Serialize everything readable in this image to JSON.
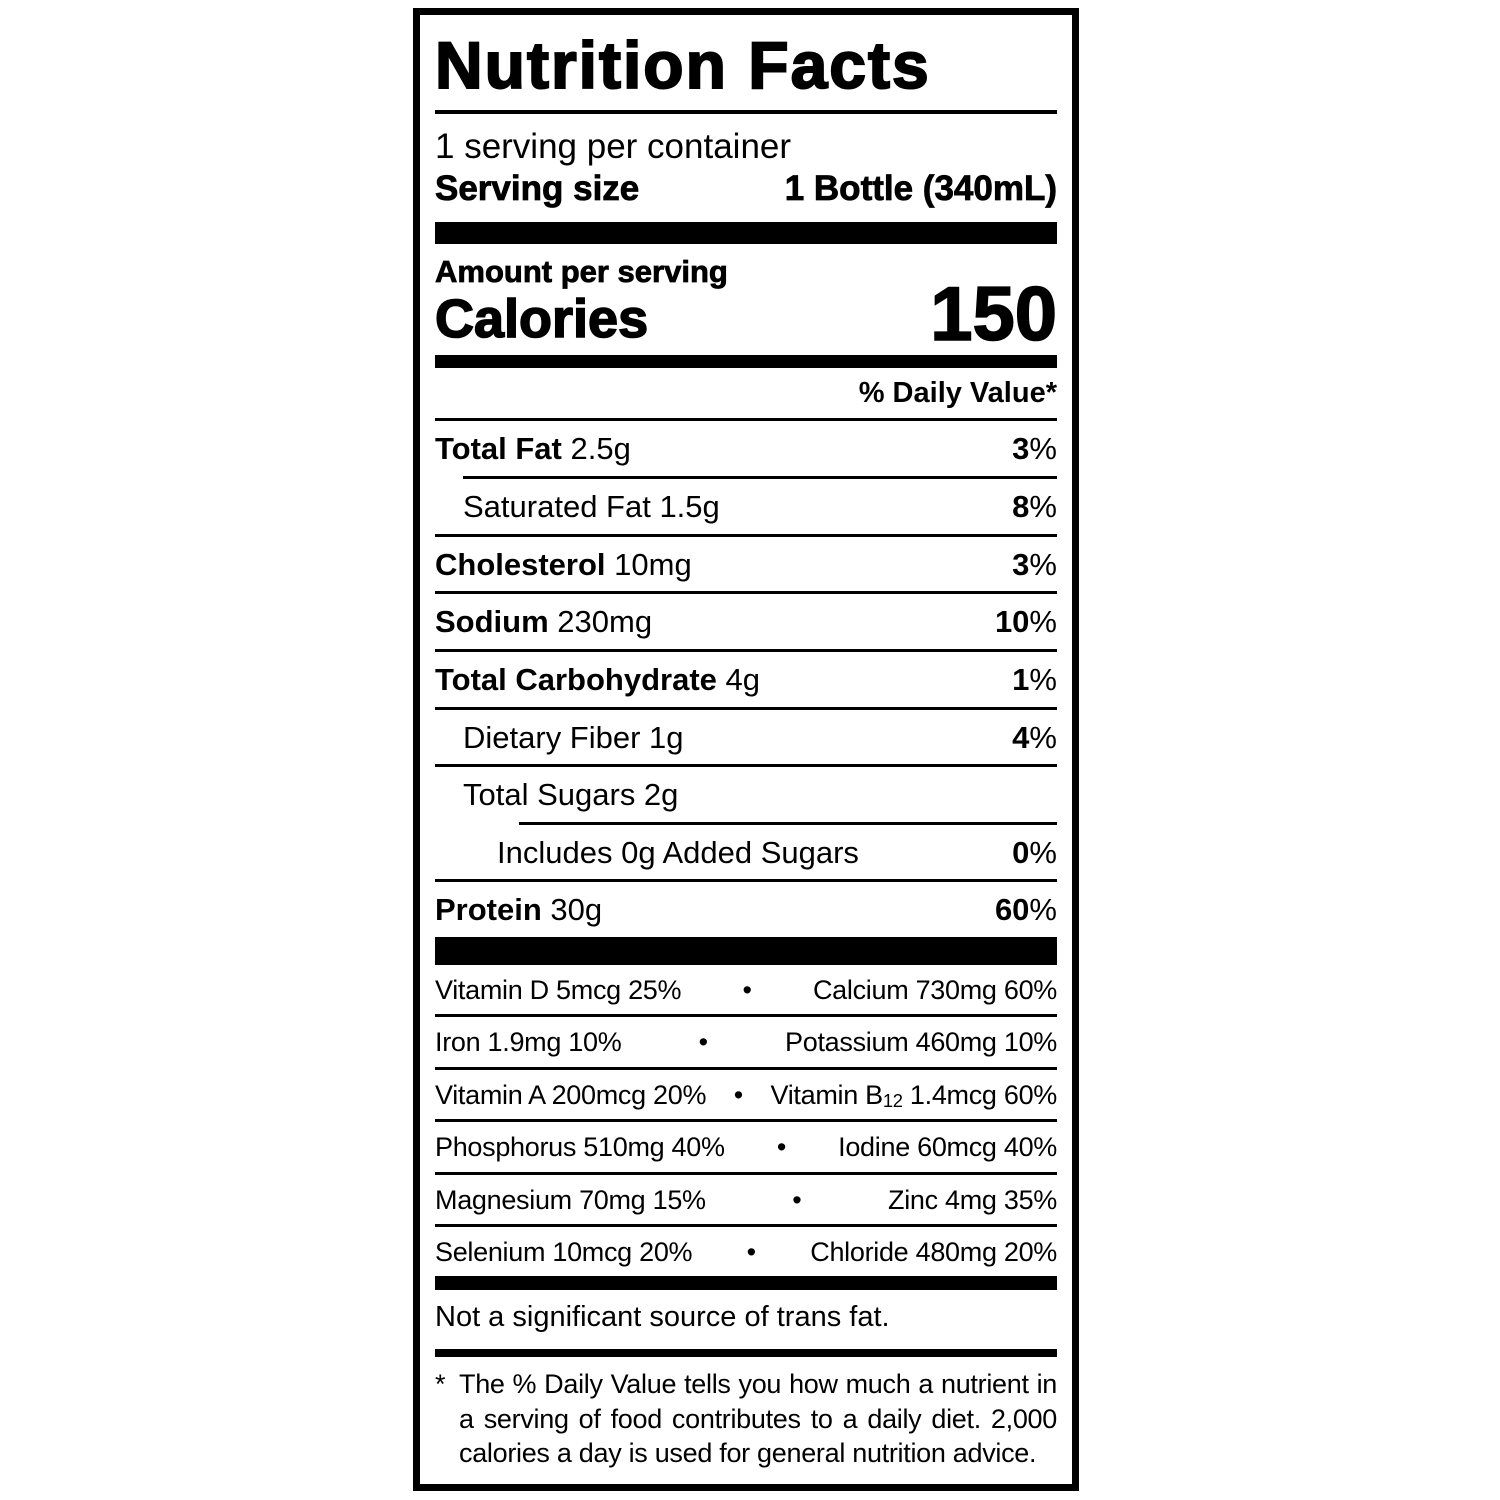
{
  "colors": {
    "ink": "#000000",
    "paper": "#ffffff"
  },
  "symbols": {
    "percent": "%",
    "bullet": "•"
  },
  "label": {
    "title": "Nutrition Facts",
    "servings_per_container": "1 serving per container",
    "serving_size": {
      "label": "Serving size",
      "value": "1 Bottle (340mL)"
    },
    "amount_per_serving": "Amount per serving",
    "calories": {
      "label": "Calories",
      "value": "150"
    },
    "daily_value_header": "% Daily Value*",
    "nutrient_rows": [
      {
        "bold": "Total Fat",
        "rest": "2.5g",
        "dv": "3"
      },
      {
        "bold": "",
        "rest": "Saturated Fat 1.5g",
        "dv": "8"
      },
      {
        "bold": "Cholesterol",
        "rest": "10mg",
        "dv": "3"
      },
      {
        "bold": "Sodium",
        "rest": "230mg",
        "dv": "10"
      },
      {
        "bold": "Total Carbohydrate",
        "rest": "4g",
        "dv": "1"
      },
      {
        "bold": "",
        "rest": "Dietary Fiber 1g",
        "dv": "4"
      },
      {
        "bold": "",
        "rest": "Total Sugars 2g",
        "dv": ""
      },
      {
        "bold": "",
        "rest": "Includes 0g Added Sugars",
        "dv": "0"
      },
      {
        "bold": "Protein",
        "rest": "30g",
        "dv": "60"
      }
    ],
    "micronutrient_rows": [
      {
        "left": "Vitamin D 5mcg 25%",
        "right": "Calcium 730mg 60%"
      },
      {
        "left": "Iron 1.9mg 10%",
        "right": "Potassium 460mg 10%"
      },
      {
        "left": "Vitamin A 200mcg 20%",
        "right_pre": "Vitamin B",
        "right_sub": "12",
        "right_post": " 1.4mcg 60%"
      },
      {
        "left": "Phosphorus 510mg 40%",
        "right": "Iodine 60mcg 40%"
      },
      {
        "left": "Magnesium 70mg 15%",
        "right": "Zinc 4mg 35%"
      },
      {
        "left": "Selenium 10mcg 20%",
        "right": "Chloride 480mg 20%"
      }
    ],
    "trans_fat_note": "Not a significant source of trans fat.",
    "footnote": {
      "marker": "*",
      "text": "The % Daily Value tells you how much a nutrient in a serving of food contributes to a daily diet. 2,000 calories a day is used for general nutrition advice."
    }
  }
}
